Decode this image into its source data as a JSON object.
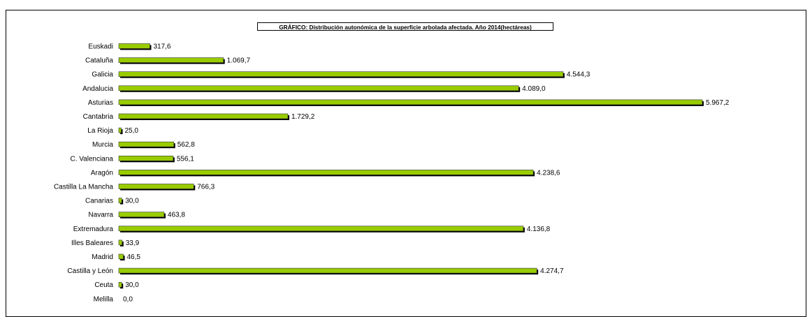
{
  "chart_data": {
    "type": "bar",
    "orientation": "horizontal",
    "title": "GRÁFICO: Distribución autonómica de la superficie arbolada afectada. Año 2014(hectáreas)",
    "categories": [
      "Euskadi",
      "Cataluña",
      "Galicia",
      "Andalucia",
      "Asturias",
      "Cantabria",
      "La Rioja",
      "Murcia",
      "C. Valenciana",
      "Aragón",
      "Castilla La Mancha",
      "Canarias",
      "Navarra",
      "Extremadura",
      "Illes Baleares",
      "Madrid",
      "Castilla y León",
      "Ceuta",
      "Melilla"
    ],
    "values": [
      317.6,
      1069.7,
      4544.3,
      4089.0,
      5967.2,
      1729.2,
      25.0,
      562.8,
      556.1,
      4238.6,
      766.3,
      30.0,
      463.8,
      4136.8,
      33.9,
      46.5,
      4274.7,
      30.0,
      0.0
    ],
    "value_labels": [
      "317,6",
      "1.069,7",
      "4.544,3",
      "4.089,0",
      "5.967,2",
      "1.729,2",
      "25,0",
      "562,8",
      "556,1",
      "4.238,6",
      "766,3",
      "30,0",
      "463,8",
      "4.136,8",
      "33,9",
      "46,5",
      "4.274,7",
      "30,0",
      "0,0"
    ],
    "xlim": [
      0,
      5967.2
    ],
    "grid": false,
    "legend": "none",
    "colors": {
      "bar_face": "#99cc00",
      "bar_shadow": "#000000",
      "bar_outline": "#333333"
    }
  }
}
